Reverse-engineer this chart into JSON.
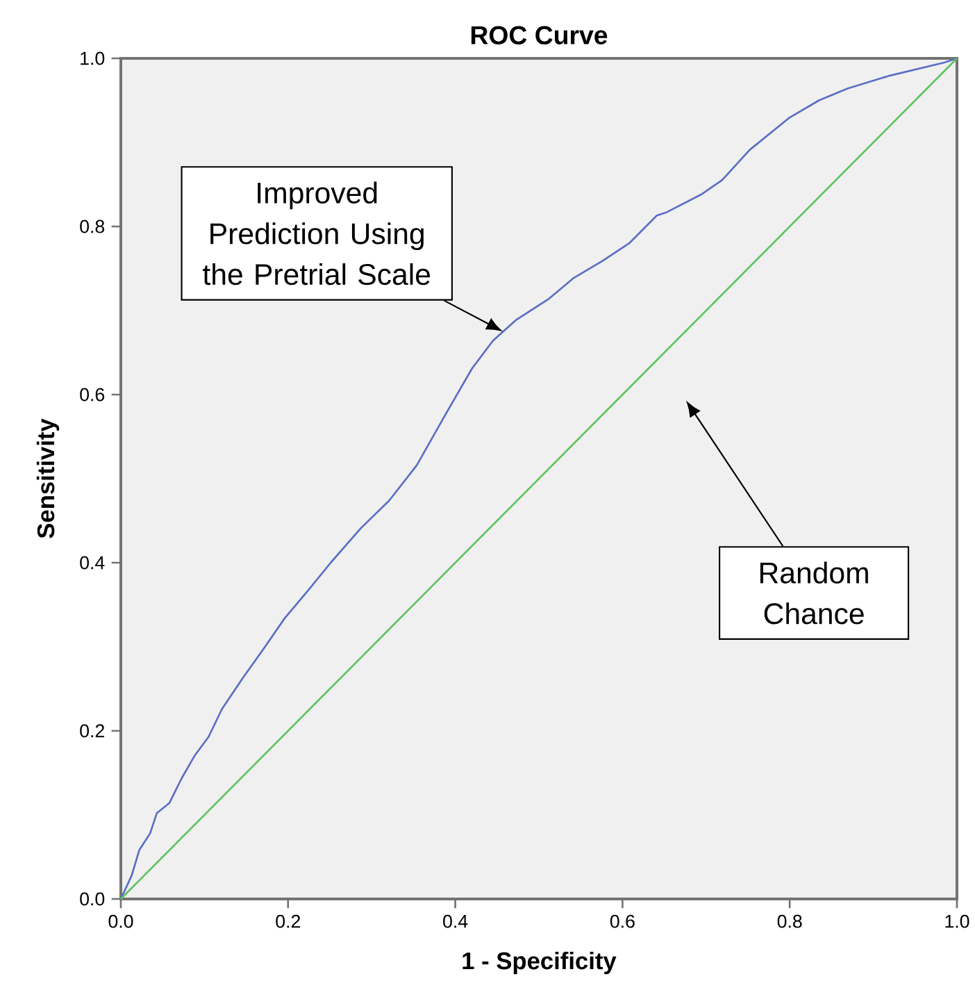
{
  "chart_data": {
    "type": "line",
    "title": "ROC Curve",
    "xlabel": "1 - Specificity",
    "ylabel": "Sensitivity",
    "series": [
      {
        "color": "#5b6ec4",
        "x": [
          0,
          0.013,
          0.022,
          0.035,
          0.043,
          0.058,
          0.073,
          0.088,
          0.105,
          0.121,
          0.146,
          0.171,
          0.196,
          0.224,
          0.251,
          0.287,
          0.321,
          0.354,
          0.387,
          0.42,
          0.445,
          0.473,
          0.512,
          0.542,
          0.576,
          0.608,
          0.641,
          0.653,
          0.694,
          0.719,
          0.752,
          0.799,
          0.835,
          0.869,
          0.918,
          0.985,
          1
        ],
        "values": [
          0,
          0.028,
          0.058,
          0.078,
          0.102,
          0.114,
          0.144,
          0.17,
          0.193,
          0.226,
          0.263,
          0.298,
          0.334,
          0.367,
          0.4,
          0.441,
          0.474,
          0.516,
          0.574,
          0.631,
          0.664,
          0.689,
          0.714,
          0.739,
          0.759,
          0.78,
          0.813,
          0.817,
          0.838,
          0.855,
          0.891,
          0.929,
          0.95,
          0.964,
          0.979,
          0.995,
          1
        ]
      },
      {
        "color": "#5cc45c",
        "x": [
          0,
          1
        ],
        "values": [
          0,
          1
        ]
      }
    ],
    "annotations": [
      {
        "text": "Improved Prediction Using the Pretrial Scale",
        "x": 0.457,
        "y": 0.675
      },
      "Random Chance"
    ],
    "xlim": [
      0,
      1
    ],
    "ylim": [
      0,
      1
    ],
    "xticks": [
      {
        "value": 0,
        "label": "0.0"
      },
      {
        "value": 0.2,
        "label": "0.2"
      },
      {
        "value": 0.4,
        "label": "0.4"
      },
      {
        "value": 0.6,
        "label": "0.6"
      },
      {
        "value": 0.8,
        "label": "0.8"
      },
      {
        "value": 1,
        "label": "1.0"
      }
    ],
    "yticks": [
      {
        "value": 0,
        "label": "0.0"
      },
      {
        "value": 0.2,
        "label": "0.2"
      },
      {
        "value": 0.4,
        "label": "0.4"
      },
      {
        "value": 0.6,
        "label": "0.6"
      },
      {
        "value": 0.8,
        "label": "0.8"
      },
      {
        "value": 1,
        "label": "1.0"
      }
    ],
    "grid": false,
    "marker": "none",
    "line_style": "solid"
  }
}
